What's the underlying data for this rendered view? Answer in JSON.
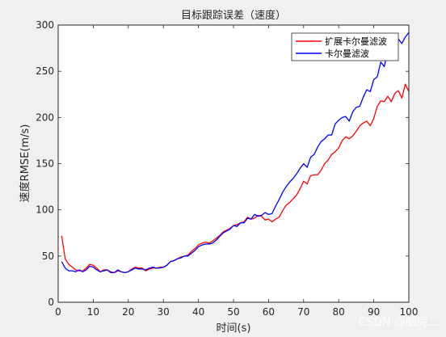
{
  "chart_data": {
    "type": "line",
    "title": "目标跟踪误差（速度）",
    "xlabel": "时间(s)",
    "ylabel": "速度RMSE(m/s)",
    "xlim": [
      0,
      100
    ],
    "ylim": [
      0,
      300
    ],
    "xticks": [
      0,
      10,
      20,
      30,
      40,
      50,
      60,
      70,
      80,
      90,
      100
    ],
    "yticks": [
      0,
      50,
      100,
      150,
      200,
      250,
      300
    ],
    "grid": false,
    "legend_position": "top-right",
    "series": [
      {
        "name": "扩展卡尔曼滤波",
        "color": "#ff0000",
        "x": [
          1,
          2,
          3,
          4,
          5,
          6,
          7,
          8,
          9,
          10,
          11,
          12,
          13,
          14,
          15,
          16,
          17,
          18,
          19,
          20,
          21,
          22,
          23,
          24,
          25,
          26,
          27,
          28,
          29,
          30,
          31,
          32,
          33,
          34,
          35,
          36,
          37,
          38,
          39,
          40,
          41,
          42,
          43,
          44,
          45,
          46,
          47,
          48,
          49,
          50,
          51,
          52,
          53,
          54,
          55,
          56,
          57,
          58,
          59,
          60,
          61,
          62,
          63,
          64,
          65,
          66,
          67,
          68,
          69,
          70,
          71,
          72,
          73,
          74,
          75,
          76,
          77,
          78,
          79,
          80,
          81,
          82,
          83,
          84,
          85,
          86,
          87,
          88,
          89,
          90,
          91,
          92,
          93,
          94,
          95,
          96,
          97,
          98,
          99,
          100
        ],
        "values": [
          72,
          47,
          41,
          38,
          35,
          34,
          34,
          37,
          41,
          40,
          37,
          33,
          35,
          35,
          33,
          32,
          34,
          33,
          32,
          33,
          36,
          38,
          37,
          37,
          34,
          36,
          37,
          37,
          38,
          38,
          40,
          44,
          45,
          47,
          49,
          50,
          51,
          55,
          58,
          62,
          64,
          65,
          64,
          66,
          69,
          72,
          76,
          78,
          80,
          83,
          84,
          86,
          87,
          92,
          90,
          91,
          94,
          93,
          89,
          90,
          87,
          90,
          92,
          99,
          105,
          108,
          112,
          116,
          123,
          131,
          128,
          137,
          138,
          138,
          143,
          150,
          154,
          160,
          163,
          167,
          175,
          179,
          177,
          180,
          185,
          191,
          194,
          196,
          191,
          199,
          212,
          218,
          217,
          223,
          217,
          226,
          229,
          221,
          236,
          228
        ]
      },
      {
        "name": "卡尔曼滤波",
        "color": "#0000ff",
        "x": [
          1,
          2,
          3,
          4,
          5,
          6,
          7,
          8,
          9,
          10,
          11,
          12,
          13,
          14,
          15,
          16,
          17,
          18,
          19,
          20,
          21,
          22,
          23,
          24,
          25,
          26,
          27,
          28,
          29,
          30,
          31,
          32,
          33,
          34,
          35,
          36,
          37,
          38,
          39,
          40,
          41,
          42,
          43,
          44,
          45,
          46,
          47,
          48,
          49,
          50,
          51,
          52,
          53,
          54,
          55,
          56,
          57,
          58,
          59,
          60,
          61,
          62,
          63,
          64,
          65,
          66,
          67,
          68,
          69,
          70,
          71,
          72,
          73,
          74,
          75,
          76,
          77,
          78,
          79,
          80,
          81,
          82,
          83,
          84,
          85,
          86,
          87,
          88,
          89,
          90,
          91,
          92,
          93,
          94,
          95,
          96,
          97,
          98,
          99,
          100
        ],
        "values": [
          44,
          37,
          34,
          34,
          33,
          35,
          33,
          35,
          39,
          38,
          35,
          33,
          34,
          35,
          32,
          32,
          35,
          33,
          32,
          33,
          35,
          37,
          36,
          36,
          35,
          37,
          38,
          37,
          37,
          38,
          40,
          44,
          45,
          47,
          48,
          50,
          50,
          53,
          56,
          60,
          62,
          63,
          63,
          64,
          67,
          71,
          75,
          77,
          79,
          83,
          82,
          86,
          86,
          91,
          90,
          95,
          93,
          94,
          97,
          95,
          96,
          104,
          111,
          119,
          125,
          130,
          134,
          139,
          145,
          150,
          146,
          157,
          160,
          168,
          174,
          177,
          181,
          181,
          193,
          197,
          200,
          201,
          196,
          206,
          211,
          212,
          222,
          230,
          228,
          241,
          244,
          260,
          255,
          274,
          264,
          268,
          285,
          280,
          287,
          292
        ]
      }
    ]
  },
  "watermark": "CSDN @胭完二"
}
